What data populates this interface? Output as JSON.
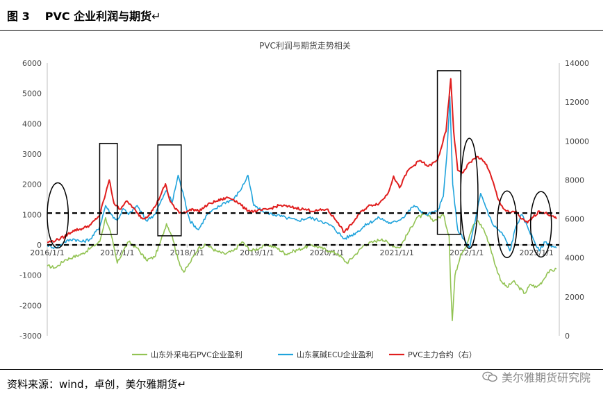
{
  "header": {
    "figure_number": "图 3",
    "figure_title": "PVC 企业利润与期货",
    "paragraph_mark": "↵"
  },
  "footer": {
    "source": "资料来源：wind，卓创，美尔雅期货",
    "paragraph_mark": "↵",
    "watermark": "美尔雅期货研究院",
    "watermark_icon": "wechat-icon"
  },
  "chart_data": {
    "type": "line",
    "title": "PVC利润与期货走势相关",
    "x_tick_labels": [
      "2016/1/1",
      "2017/1/1",
      "2018/1/1",
      "2019/1/1",
      "2020/1/1",
      "2021/1/1",
      "2022/1/1",
      "2023/1/1"
    ],
    "x_range": [
      "2016-01-01",
      "2023-04-30"
    ],
    "ylim_left": [
      -3000,
      6000
    ],
    "y_ticks_left": [
      -3000,
      -2000,
      -1000,
      0,
      1000,
      2000,
      3000,
      4000,
      5000,
      6000
    ],
    "ylim_right": [
      0,
      14000
    ],
    "y_ticks_right": [
      0,
      2000,
      4000,
      6000,
      8000,
      10000,
      12000,
      14000
    ],
    "grid": false,
    "legend_position": "bottom",
    "reference_lines_left_axis": [
      0,
      1050
    ],
    "series": [
      {
        "name": "山东外采电石PVC企业盈利",
        "color": "#92c353",
        "axis": "left",
        "points": [
          [
            "2016-01-01",
            -700
          ],
          [
            "2016-02-15",
            -750
          ],
          [
            "2016-04-01",
            -500
          ],
          [
            "2016-05-15",
            -400
          ],
          [
            "2016-07-01",
            -300
          ],
          [
            "2016-08-15",
            -100
          ],
          [
            "2016-10-01",
            100
          ],
          [
            "2016-11-01",
            900
          ],
          [
            "2016-12-01",
            300
          ],
          [
            "2017-01-01",
            -600
          ],
          [
            "2017-02-01",
            -200
          ],
          [
            "2017-03-01",
            100
          ],
          [
            "2017-04-15",
            -100
          ],
          [
            "2017-06-01",
            -500
          ],
          [
            "2017-07-15",
            -400
          ],
          [
            "2017-08-15",
            100
          ],
          [
            "2017-09-15",
            700
          ],
          [
            "2017-10-15",
            300
          ],
          [
            "2017-11-15",
            -500
          ],
          [
            "2017-12-15",
            -900
          ],
          [
            "2018-01-15",
            -600
          ],
          [
            "2018-03-01",
            -100
          ],
          [
            "2018-04-15",
            0
          ],
          [
            "2018-06-01",
            -200
          ],
          [
            "2018-07-15",
            -300
          ],
          [
            "2018-09-01",
            -200
          ],
          [
            "2018-10-15",
            100
          ],
          [
            "2018-12-01",
            -200
          ],
          [
            "2019-01-15",
            -100
          ],
          [
            "2019-03-01",
            0
          ],
          [
            "2019-04-15",
            -100
          ],
          [
            "2019-06-01",
            -300
          ],
          [
            "2019-07-15",
            -200
          ],
          [
            "2019-09-01",
            -100
          ],
          [
            "2019-10-15",
            0
          ],
          [
            "2019-12-01",
            -100
          ],
          [
            "2020-01-15",
            -200
          ],
          [
            "2020-03-01",
            -300
          ],
          [
            "2020-04-15",
            -600
          ],
          [
            "2020-06-01",
            -300
          ],
          [
            "2020-07-15",
            0
          ],
          [
            "2020-09-01",
            100
          ],
          [
            "2020-10-15",
            200
          ],
          [
            "2020-12-01",
            0
          ],
          [
            "2021-01-15",
            -100
          ],
          [
            "2021-03-01",
            400
          ],
          [
            "2021-04-15",
            900
          ],
          [
            "2021-06-01",
            1000
          ],
          [
            "2021-07-15",
            800
          ],
          [
            "2021-09-01",
            1000
          ],
          [
            "2021-10-01",
            300
          ],
          [
            "2021-10-10",
            -1400
          ],
          [
            "2021-10-18",
            -2500
          ],
          [
            "2021-11-01",
            -1000
          ],
          [
            "2021-12-01",
            -300
          ],
          [
            "2022-01-01",
            0
          ],
          [
            "2022-02-01",
            600
          ],
          [
            "2022-03-01",
            800
          ],
          [
            "2022-04-01",
            500
          ],
          [
            "2022-05-01",
            0
          ],
          [
            "2022-06-01",
            -700
          ],
          [
            "2022-07-01",
            -1200
          ],
          [
            "2022-08-01",
            -1400
          ],
          [
            "2022-09-01",
            -1200
          ],
          [
            "2022-10-01",
            -1400
          ],
          [
            "2022-11-01",
            -1600
          ],
          [
            "2022-12-01",
            -1300
          ],
          [
            "2023-01-01",
            -1400
          ],
          [
            "2023-02-01",
            -1200
          ],
          [
            "2023-03-01",
            -900
          ],
          [
            "2023-04-15",
            -800
          ]
        ]
      },
      {
        "name": "山东氯碱ECU企业盈利",
        "color": "#1fa3dc",
        "axis": "left",
        "points": [
          [
            "2016-01-01",
            0
          ],
          [
            "2016-02-15",
            -100
          ],
          [
            "2016-04-01",
            100
          ],
          [
            "2016-05-15",
            200
          ],
          [
            "2016-07-01",
            100
          ],
          [
            "2016-08-15",
            200
          ],
          [
            "2016-10-01",
            600
          ],
          [
            "2016-11-01",
            1300
          ],
          [
            "2016-12-01",
            1000
          ],
          [
            "2017-01-01",
            800
          ],
          [
            "2017-02-01",
            1200
          ],
          [
            "2017-03-01",
            1000
          ],
          [
            "2017-04-15",
            1300
          ],
          [
            "2017-06-01",
            800
          ],
          [
            "2017-07-15",
            1000
          ],
          [
            "2017-08-15",
            1400
          ],
          [
            "2017-09-15",
            1800
          ],
          [
            "2017-10-15",
            1400
          ],
          [
            "2017-11-15",
            2300
          ],
          [
            "2017-12-15",
            1600
          ],
          [
            "2018-01-15",
            800
          ],
          [
            "2018-03-01",
            500
          ],
          [
            "2018-04-15",
            1000
          ],
          [
            "2018-06-01",
            1200
          ],
          [
            "2018-07-15",
            1400
          ],
          [
            "2018-09-01",
            1500
          ],
          [
            "2018-10-15",
            1900
          ],
          [
            "2018-11-15",
            2300
          ],
          [
            "2018-12-15",
            1300
          ],
          [
            "2019-02-01",
            1100
          ],
          [
            "2019-04-01",
            1000
          ],
          [
            "2019-06-01",
            900
          ],
          [
            "2019-08-01",
            800
          ],
          [
            "2019-10-01",
            900
          ],
          [
            "2019-12-01",
            800
          ],
          [
            "2020-02-01",
            600
          ],
          [
            "2020-04-01",
            200
          ],
          [
            "2020-06-01",
            400
          ],
          [
            "2020-08-01",
            700
          ],
          [
            "2020-10-01",
            900
          ],
          [
            "2020-12-01",
            700
          ],
          [
            "2021-02-01",
            900
          ],
          [
            "2021-04-01",
            1300
          ],
          [
            "2021-06-01",
            1000
          ],
          [
            "2021-08-01",
            1100
          ],
          [
            "2021-09-01",
            1600
          ],
          [
            "2021-09-20",
            3000
          ],
          [
            "2021-10-05",
            4900
          ],
          [
            "2021-10-20",
            2000
          ],
          [
            "2021-11-15",
            500
          ],
          [
            "2021-12-15",
            200
          ],
          [
            "2022-01-15",
            -100
          ],
          [
            "2022-02-15",
            800
          ],
          [
            "2022-03-15",
            1700
          ],
          [
            "2022-04-15",
            1200
          ],
          [
            "2022-05-15",
            700
          ],
          [
            "2022-06-15",
            500
          ],
          [
            "2022-07-15",
            300
          ],
          [
            "2022-08-15",
            -200
          ],
          [
            "2022-09-15",
            600
          ],
          [
            "2022-10-15",
            1000
          ],
          [
            "2022-11-15",
            600
          ],
          [
            "2022-12-15",
            200
          ],
          [
            "2023-01-15",
            -200
          ],
          [
            "2023-02-15",
            100
          ],
          [
            "2023-03-15",
            0
          ],
          [
            "2023-04-15",
            -100
          ]
        ]
      },
      {
        "name": "PVC主力合约（右）",
        "color": "#e01e1e",
        "axis": "right",
        "points": [
          [
            "2016-01-01",
            4800
          ],
          [
            "2016-02-15",
            4900
          ],
          [
            "2016-04-01",
            5100
          ],
          [
            "2016-05-15",
            5400
          ],
          [
            "2016-07-01",
            5500
          ],
          [
            "2016-08-15",
            5700
          ],
          [
            "2016-10-01",
            6200
          ],
          [
            "2016-11-01",
            7300
          ],
          [
            "2016-11-20",
            8000
          ],
          [
            "2016-12-15",
            6800
          ],
          [
            "2017-01-15",
            6500
          ],
          [
            "2017-02-15",
            6900
          ],
          [
            "2017-03-15",
            6700
          ],
          [
            "2017-04-15",
            6300
          ],
          [
            "2017-05-15",
            6000
          ],
          [
            "2017-06-15",
            6200
          ],
          [
            "2017-07-15",
            6600
          ],
          [
            "2017-08-15",
            7200
          ],
          [
            "2017-09-10",
            7800
          ],
          [
            "2017-10-01",
            7000
          ],
          [
            "2017-11-01",
            6500
          ],
          [
            "2017-12-01",
            6300
          ],
          [
            "2018-01-01",
            6400
          ],
          [
            "2018-02-01",
            6500
          ],
          [
            "2018-03-01",
            6400
          ],
          [
            "2018-04-01",
            6600
          ],
          [
            "2018-05-01",
            6800
          ],
          [
            "2018-06-01",
            6900
          ],
          [
            "2018-07-01",
            7000
          ],
          [
            "2018-08-01",
            7100
          ],
          [
            "2018-09-01",
            7000
          ],
          [
            "2018-10-01",
            6800
          ],
          [
            "2018-11-01",
            6500
          ],
          [
            "2018-12-01",
            6400
          ],
          [
            "2019-01-01",
            6400
          ],
          [
            "2019-03-01",
            6500
          ],
          [
            "2019-05-01",
            6700
          ],
          [
            "2019-07-01",
            6600
          ],
          [
            "2019-09-01",
            6500
          ],
          [
            "2019-11-01",
            6400
          ],
          [
            "2020-01-01",
            6500
          ],
          [
            "2020-03-01",
            5800
          ],
          [
            "2020-04-01",
            5300
          ],
          [
            "2020-05-15",
            5800
          ],
          [
            "2020-07-01",
            6400
          ],
          [
            "2020-08-15",
            6700
          ],
          [
            "2020-10-01",
            6800
          ],
          [
            "2020-11-15",
            7300
          ],
          [
            "2020-12-15",
            8200
          ],
          [
            "2021-01-15",
            7600
          ],
          [
            "2021-03-01",
            8500
          ],
          [
            "2021-05-01",
            9000
          ],
          [
            "2021-06-15",
            8700
          ],
          [
            "2021-08-01",
            9000
          ],
          [
            "2021-09-15",
            10500
          ],
          [
            "2021-10-10",
            13200
          ],
          [
            "2021-10-25",
            10500
          ],
          [
            "2021-11-15",
            8500
          ],
          [
            "2021-12-15",
            8400
          ],
          [
            "2022-01-15",
            8900
          ],
          [
            "2022-03-01",
            9200
          ],
          [
            "2022-04-15",
            8800
          ],
          [
            "2022-05-15",
            8000
          ],
          [
            "2022-06-15",
            7000
          ],
          [
            "2022-07-15",
            6500
          ],
          [
            "2022-08-15",
            6300
          ],
          [
            "2022-09-15",
            6400
          ],
          [
            "2022-10-15",
            6000
          ],
          [
            "2022-11-15",
            5800
          ],
          [
            "2022-12-15",
            6100
          ],
          [
            "2023-01-15",
            6400
          ],
          [
            "2023-02-15",
            6300
          ],
          [
            "2023-03-15",
            6200
          ],
          [
            "2023-04-15",
            6000
          ]
        ]
      }
    ],
    "highlight_boxes": [
      {
        "shape": "rectangle",
        "from": "2016-10-01",
        "to": "2017-01-01",
        "y_top": 3350,
        "y_bottom": 350
      },
      {
        "shape": "rectangle",
        "from": "2017-08-01",
        "to": "2017-12-01",
        "y_top": 3300,
        "y_bottom": 300
      },
      {
        "shape": "rectangle",
        "from": "2021-08-01",
        "to": "2021-12-01",
        "y_top": 5750,
        "y_bottom": 350
      },
      {
        "shape": "ellipse",
        "from": "2016-01-01",
        "to": "2016-04-20",
        "y_top": 2050,
        "y_bottom": -100
      },
      {
        "shape": "ellipse",
        "from": "2021-12-01",
        "to": "2022-03-01",
        "y_top": 3520,
        "y_bottom": -120
      },
      {
        "shape": "ellipse",
        "from": "2022-06-10",
        "to": "2022-09-20",
        "y_top": 1780,
        "y_bottom": -420
      },
      {
        "shape": "ellipse",
        "from": "2022-12-01",
        "to": "2023-03-20",
        "y_top": 1760,
        "y_bottom": -400
      }
    ]
  }
}
